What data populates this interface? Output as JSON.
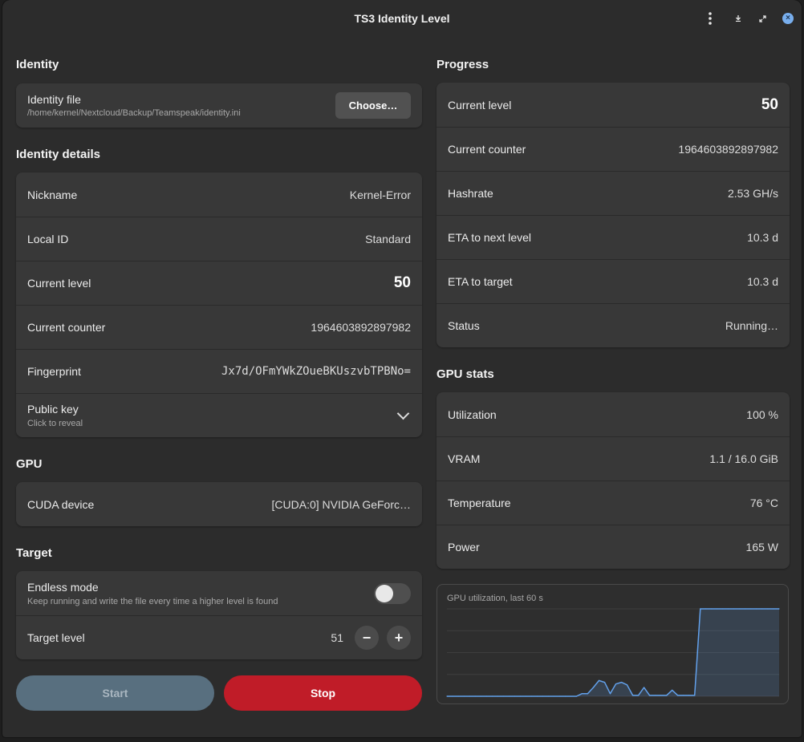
{
  "window": {
    "title": "TS3 Identity Level"
  },
  "titlebar": {
    "menu_icon": "kebab-menu-icon",
    "minimize_icon": "minimize-icon",
    "maximize_icon": "maximize-icon",
    "close_icon": "close-icon",
    "accent": "#78aeed"
  },
  "identity": {
    "title": "Identity",
    "file_label": "Identity file",
    "file_path": "/home/kernel/Nextcloud/Backup/Teamspeak/identity.ini",
    "choose_label": "Choose…"
  },
  "details": {
    "title": "Identity details",
    "rows": [
      {
        "label": "Nickname",
        "value": "Kernel-Error"
      },
      {
        "label": "Local ID",
        "value": "Standard"
      },
      {
        "label": "Current level",
        "value": "50"
      },
      {
        "label": "Current counter",
        "value": "1964603892897982"
      },
      {
        "label": "Fingerprint",
        "value": "Jx7d/OFmYWkZOueBKUszvbTPBNo="
      }
    ],
    "public_key": {
      "label": "Public key",
      "hint": "Click to reveal"
    }
  },
  "gpu": {
    "title": "GPU",
    "device_label": "CUDA device",
    "device_value": "[CUDA:0] NVIDIA GeForc…"
  },
  "target": {
    "title": "Target",
    "endless_label": "Endless mode",
    "endless_hint": "Keep running and write the file every time a higher level is found",
    "endless_on": false,
    "level_label": "Target level",
    "level_value": "51",
    "minus": "−",
    "plus": "+"
  },
  "actions": {
    "start_label": "Start",
    "stop_label": "Stop",
    "start_color": "#586f7f",
    "stop_color": "#c01c28"
  },
  "progress": {
    "title": "Progress",
    "rows": [
      {
        "label": "Current level",
        "value": "50"
      },
      {
        "label": "Current counter",
        "value": "1964603892897982"
      },
      {
        "label": "Hashrate",
        "value": "2.53 GH/s"
      },
      {
        "label": "ETA to next level",
        "value": "10.3 d"
      },
      {
        "label": "ETA to target",
        "value": "10.3 d"
      },
      {
        "label": "Status",
        "value": "Running…"
      }
    ]
  },
  "gpu_stats": {
    "title": "GPU stats",
    "rows": [
      {
        "label": "Utilization",
        "value": "100 %"
      },
      {
        "label": "VRAM",
        "value": "1.1 / 16.0 GiB"
      },
      {
        "label": "Temperature",
        "value": "76 °C"
      },
      {
        "label": "Power",
        "value": "165 W"
      }
    ]
  },
  "chart_data": {
    "type": "area",
    "title": "GPU utilization, last 60 s",
    "xlabel": "",
    "ylabel": "",
    "ylim": [
      0,
      100
    ],
    "grid": true,
    "line_color": "#62a0ea",
    "x": [
      0,
      1,
      2,
      3,
      4,
      5,
      6,
      7,
      8,
      9,
      10,
      11,
      12,
      13,
      14,
      15,
      16,
      17,
      18,
      19,
      20,
      21,
      22,
      23,
      24,
      25,
      26,
      27,
      28,
      29,
      30,
      31,
      32,
      33,
      34,
      35,
      36,
      37,
      38,
      39,
      40,
      41,
      42,
      43,
      44,
      45,
      46,
      47,
      48,
      49,
      50,
      51,
      52,
      53,
      54,
      55,
      56,
      57,
      58,
      59
    ],
    "values": [
      0,
      0,
      0,
      0,
      0,
      0,
      0,
      0,
      0,
      0,
      0,
      0,
      0,
      0,
      0,
      0,
      0,
      0,
      0,
      0,
      0,
      0,
      0,
      0,
      3,
      3,
      10,
      18,
      16,
      3,
      14,
      16,
      13,
      1,
      1,
      10,
      1,
      1,
      1,
      1,
      7,
      1,
      1,
      1,
      1,
      100,
      100,
      100,
      100,
      100,
      100,
      100,
      100,
      100,
      100,
      100,
      100,
      100,
      100,
      100
    ]
  }
}
